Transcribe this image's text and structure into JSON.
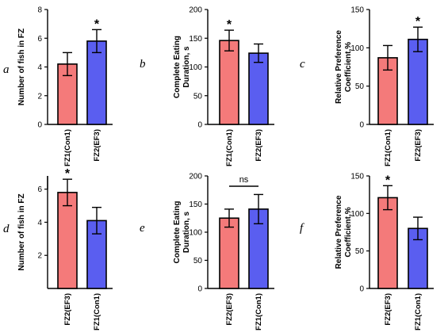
{
  "colors": {
    "red": "#f47a7a",
    "blue": "#5a5ef0",
    "stroke": "#000000"
  },
  "chart_data": [
    {
      "type": "bar",
      "panel": "a",
      "ylabel": "Number of fish in FZ",
      "ylim": [
        0,
        8
      ],
      "yticks": [
        0,
        2,
        4,
        6,
        8
      ],
      "categories": [
        "FZ1(Con1)",
        "FZ2(EF3)"
      ],
      "values": [
        4.2,
        5.8
      ],
      "errors": [
        0.8,
        0.8
      ],
      "colors": [
        "red",
        "blue"
      ],
      "significance": [
        {
          "bar": 1,
          "label": "*"
        }
      ]
    },
    {
      "type": "bar",
      "panel": "b",
      "ylabel": [
        "Complete Eating",
        "Duration, s"
      ],
      "ylim": [
        0,
        200
      ],
      "yticks": [
        0,
        50,
        100,
        150,
        200
      ],
      "categories": [
        "FZ1(Con1)",
        "FZ2(EF3)"
      ],
      "values": [
        146,
        124
      ],
      "errors": [
        18,
        16
      ],
      "colors": [
        "red",
        "blue"
      ],
      "significance": [
        {
          "bar": 0,
          "label": "*"
        }
      ]
    },
    {
      "type": "bar",
      "panel": "c",
      "ylabel": [
        "Relative Preference",
        "Coefficient,%"
      ],
      "ylim": [
        0,
        150
      ],
      "yticks": [
        0,
        50,
        100,
        150
      ],
      "categories": [
        "FZ1(Con1)",
        "FZ2(EF3)"
      ],
      "values": [
        87,
        111
      ],
      "errors": [
        16,
        16
      ],
      "colors": [
        "red",
        "blue"
      ],
      "significance": [
        {
          "bar": 1,
          "label": "*"
        }
      ]
    },
    {
      "type": "bar",
      "panel": "d",
      "ylabel": "Number of fish in FZ",
      "ylim": [
        0,
        6.8
      ],
      "yticks": [
        2,
        4,
        6
      ],
      "categories": [
        "FZ2(EF3)",
        "FZ1(Con1)"
      ],
      "values": [
        5.8,
        4.1
      ],
      "errors": [
        0.8,
        0.8
      ],
      "colors": [
        "red",
        "blue"
      ],
      "significance": [
        {
          "bar": 0,
          "label": "*"
        }
      ]
    },
    {
      "type": "bar",
      "panel": "e",
      "ylabel": [
        "Complete Eating",
        "Duration, s"
      ],
      "ylim": [
        0,
        200
      ],
      "yticks": [
        0,
        50,
        100,
        150,
        200
      ],
      "categories": [
        "FZ2(EF3)",
        "FZ1(Con1)"
      ],
      "values": [
        125,
        141
      ],
      "errors": [
        16,
        26
      ],
      "colors": [
        "red",
        "blue"
      ],
      "significance": [
        {
          "bracket": [
            0,
            1
          ],
          "label": "ns"
        }
      ]
    },
    {
      "type": "bar",
      "panel": "f",
      "ylabel": [
        "Relative Preference",
        "Coefficient,%"
      ],
      "ylim": [
        0,
        150
      ],
      "yticks": [
        0,
        50,
        100,
        150
      ],
      "categories": [
        "FZ2(EF3)",
        "FZ1(Con1)"
      ],
      "values": [
        121,
        80
      ],
      "errors": [
        16,
        15
      ],
      "colors": [
        "red",
        "blue"
      ],
      "significance": [
        {
          "bar": 0,
          "label": "*"
        }
      ]
    }
  ]
}
